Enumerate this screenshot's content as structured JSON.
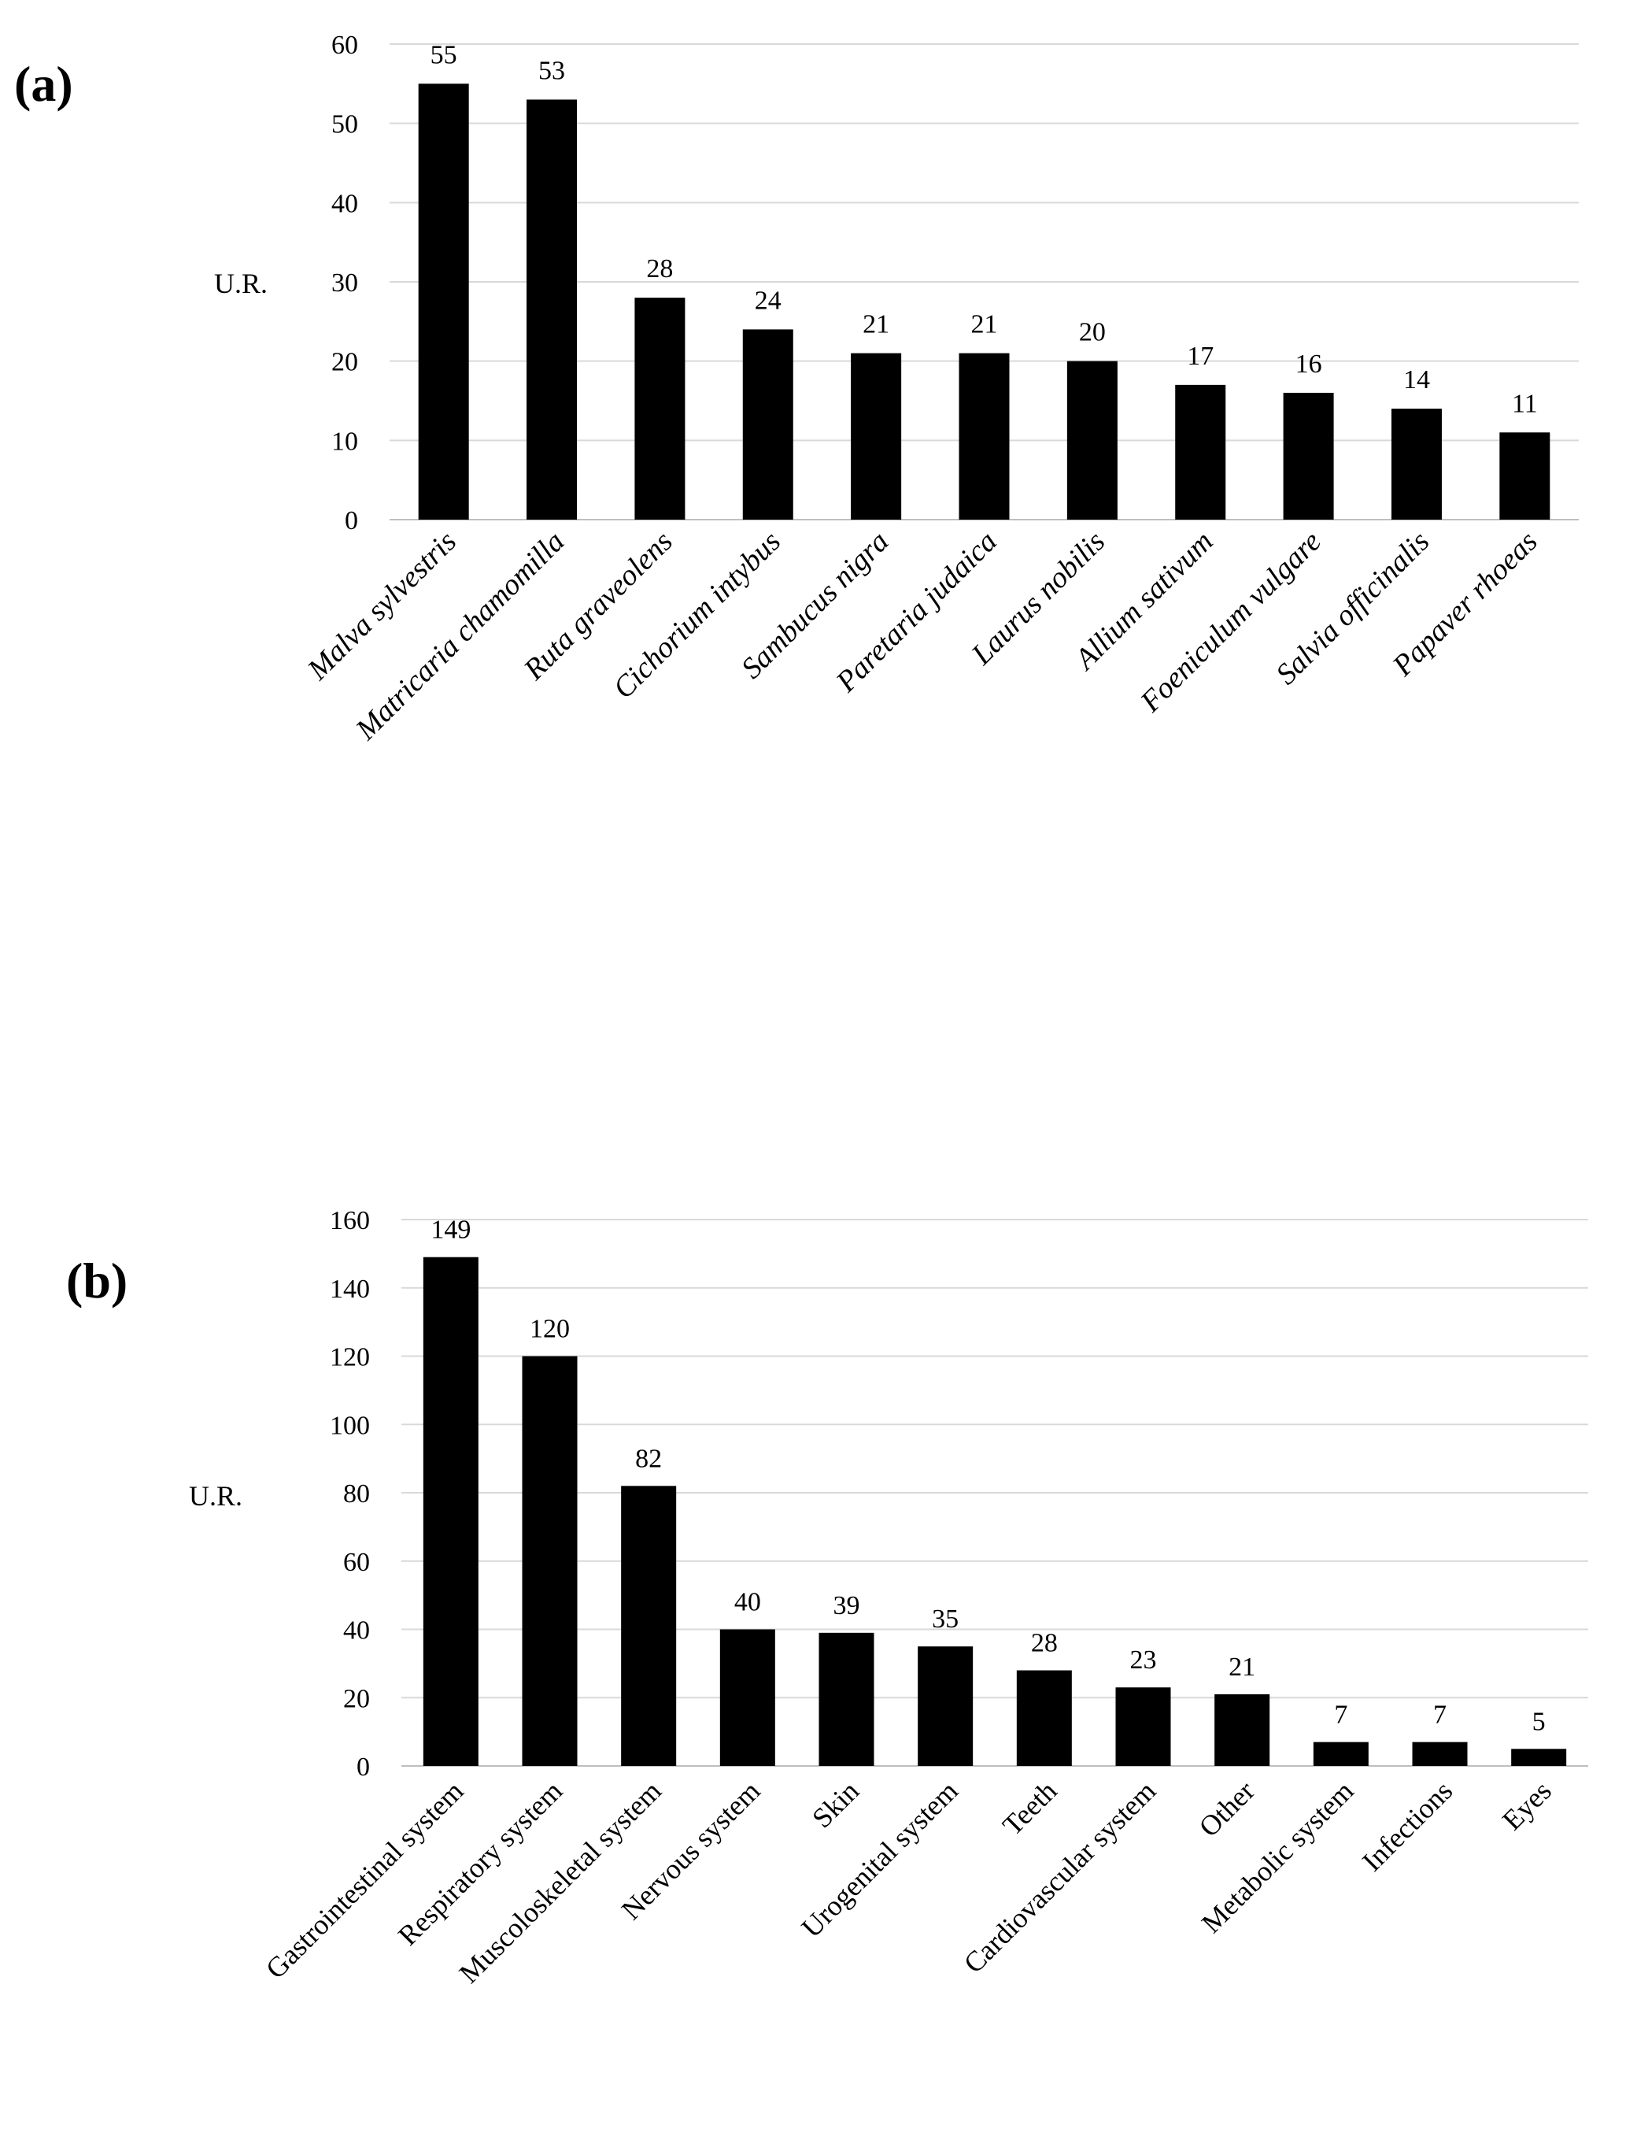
{
  "chart_data": [
    {
      "type": "bar",
      "panel_label": "(a)",
      "ylabel": "U.R.",
      "ylim": [
        0,
        60
      ],
      "yticks": [
        0,
        10,
        20,
        30,
        40,
        50,
        60
      ],
      "categories": [
        "Malva sylvestris",
        "Matricaria chamomilla",
        "Ruta graveolens",
        "Cichorium intybus",
        "Sambucus nigra",
        "Paretaria judaica",
        "Laurus nobilis",
        "Allium sativum",
        "Foeniculum vulgare",
        "Salvia officinalis",
        "Papaver rhoeas"
      ],
      "values": [
        55,
        53,
        28,
        24,
        21,
        21,
        20,
        17,
        16,
        14,
        11
      ],
      "grid": true,
      "bar_color": "#000000"
    },
    {
      "type": "bar",
      "panel_label": "(b)",
      "ylabel": "U.R.",
      "ylim": [
        0,
        160
      ],
      "yticks": [
        0,
        20,
        40,
        60,
        80,
        100,
        120,
        140,
        160
      ],
      "categories": [
        "Gastrointestinal system",
        "Respiratory system",
        "Muscoloskeletal system",
        "Nervous system",
        "Skin",
        "Urogenital system",
        "Teeth",
        "Cardiovascular system",
        "Other",
        "Metabolic system",
        "Infections",
        "Eyes"
      ],
      "values": [
        149,
        120,
        82,
        40,
        39,
        35,
        28,
        23,
        21,
        7,
        7,
        5
      ],
      "grid": true,
      "bar_color": "#000000"
    }
  ]
}
